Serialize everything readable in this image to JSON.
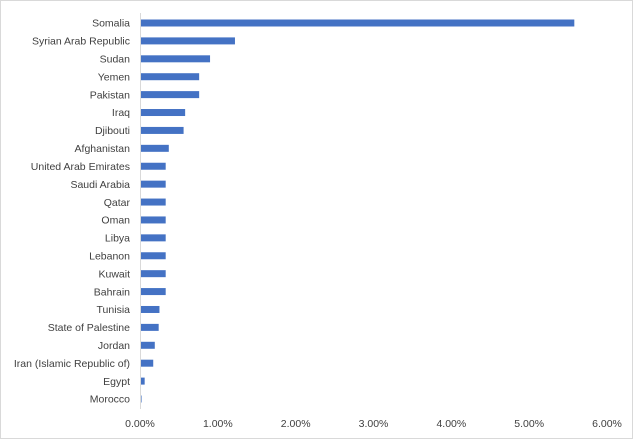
{
  "chart_data": {
    "type": "bar",
    "orientation": "horizontal",
    "categories": [
      "Somalia",
      "Syrian Arab Republic",
      "Sudan",
      "Yemen",
      "Pakistan",
      "Iraq",
      "Djibouti",
      "Afghanistan",
      "United Arab Emirates",
      "Saudi Arabia",
      "Qatar",
      "Oman",
      "Libya",
      "Lebanon",
      "Kuwait",
      "Bahrain",
      "Tunisia",
      "State of Palestine",
      "Jordan",
      "Iran (Islamic Republic of)",
      "Egypt",
      "Morocco"
    ],
    "values": [
      5.58,
      1.22,
      0.9,
      0.76,
      0.76,
      0.58,
      0.56,
      0.37,
      0.33,
      0.33,
      0.33,
      0.33,
      0.33,
      0.33,
      0.33,
      0.33,
      0.25,
      0.24,
      0.19,
      0.17,
      0.06,
      0.02
    ],
    "value_unit": "%",
    "xlim": [
      0,
      6
    ],
    "x_ticks": [
      "0.00%",
      "1.00%",
      "2.00%",
      "3.00%",
      "4.00%",
      "5.00%",
      "6.00%"
    ],
    "title": "",
    "xlabel": "",
    "ylabel": "",
    "grid": false,
    "legend": "none",
    "bar_color": "#4472c4",
    "axis_color": "#d9d9d9"
  }
}
